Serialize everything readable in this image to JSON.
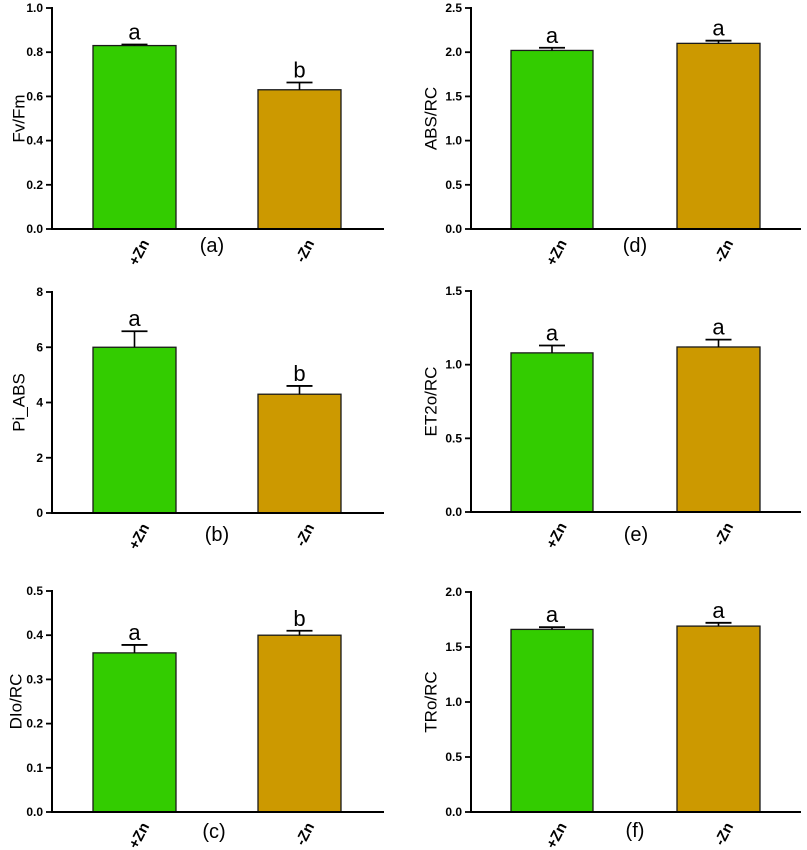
{
  "figure": {
    "colors": {
      "zn_plus": "#33CC00",
      "zn_minus": "#CC9900",
      "axis": "#000000"
    }
  },
  "chart_data": [
    {
      "type": "bar",
      "panel_label": "(a)",
      "ylabel": "Fv/Fm",
      "categories": [
        "+Zn",
        "-Zn"
      ],
      "values": [
        0.83,
        0.63
      ],
      "errors": [
        0.005,
        0.033
      ],
      "significance": [
        "a",
        "b"
      ],
      "ylim": [
        0,
        1.0
      ],
      "yticks": [
        "0.0",
        "0.2",
        "0.4",
        "0.6",
        "0.8",
        "1.0"
      ],
      "grid": false,
      "legend": "none"
    },
    {
      "type": "bar",
      "panel_label": "(b)",
      "ylabel": "Pi_ABS",
      "categories": [
        "+Zn",
        "-Zn"
      ],
      "values": [
        6.0,
        4.3
      ],
      "errors": [
        0.58,
        0.3
      ],
      "significance": [
        "a",
        "b"
      ],
      "ylim": [
        0,
        8
      ],
      "yticks": [
        "0",
        "2",
        "4",
        "6",
        "8"
      ],
      "grid": false,
      "legend": "none"
    },
    {
      "type": "bar",
      "panel_label": "(c)",
      "ylabel": "DIo/RC",
      "categories": [
        "+Zn",
        "-Zn"
      ],
      "values": [
        0.36,
        0.4
      ],
      "errors": [
        0.018,
        0.01
      ],
      "significance": [
        "a",
        "b"
      ],
      "ylim": [
        0,
        0.5
      ],
      "yticks": [
        "0.0",
        "0.1",
        "0.2",
        "0.3",
        "0.4",
        "0.5"
      ],
      "grid": false,
      "legend": "none"
    },
    {
      "type": "bar",
      "panel_label": "(d)",
      "ylabel": "ABS/RC",
      "categories": [
        "+Zn",
        "-Zn"
      ],
      "values": [
        2.02,
        2.1
      ],
      "errors": [
        0.03,
        0.03
      ],
      "significance": [
        "a",
        "a"
      ],
      "ylim": [
        0,
        2.5
      ],
      "yticks": [
        "0.0",
        "0.5",
        "1.0",
        "1.5",
        "2.0",
        "2.5"
      ],
      "grid": false,
      "legend": "none"
    },
    {
      "type": "bar",
      "panel_label": "(e)",
      "ylabel": "ET2o/RC",
      "categories": [
        "+Zn",
        "-Zn"
      ],
      "values": [
        1.08,
        1.12
      ],
      "errors": [
        0.05,
        0.05
      ],
      "significance": [
        "a",
        "a"
      ],
      "ylim": [
        0,
        1.5
      ],
      "yticks": [
        "0.0",
        "0.5",
        "1.0",
        "1.5"
      ],
      "grid": false,
      "legend": "none"
    },
    {
      "type": "bar",
      "panel_label": "(f)",
      "ylabel": "TRo/RC",
      "categories": [
        "+Zn",
        "-Zn"
      ],
      "values": [
        1.66,
        1.69
      ],
      "errors": [
        0.02,
        0.03
      ],
      "significance": [
        "a",
        "a"
      ],
      "ylim": [
        0,
        2.0
      ],
      "yticks": [
        "0.0",
        "0.5",
        "1.0",
        "1.5",
        "2.0"
      ],
      "grid": false,
      "legend": "none"
    }
  ]
}
